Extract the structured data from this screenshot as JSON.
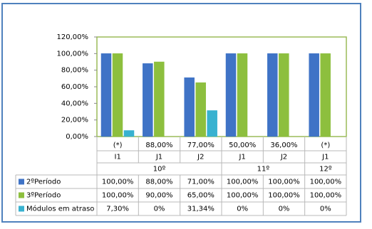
{
  "chart_data": {
    "type": "bar",
    "categories": [
      "I1",
      "J1",
      "J2",
      "J1",
      "J2",
      "J1"
    ],
    "category_top_labels": [
      "(*)",
      "88,00%",
      "77,00%",
      "50,00%",
      "36,00%",
      "(*)"
    ],
    "category_groups": [
      {
        "label": "10º",
        "span": 3
      },
      {
        "label": "11º",
        "span": 2
      },
      {
        "label": "12º",
        "span": 1
      }
    ],
    "series": [
      {
        "name": "2ºPeríodo",
        "color": "#3f73c6",
        "values": [
          100,
          88,
          71,
          100,
          100,
          100
        ],
        "value_labels": [
          "100,00%",
          "88,00%",
          "71,00%",
          "100,00%",
          "100,00%",
          "100,00%"
        ]
      },
      {
        "name": "3ºPeríodo",
        "color": "#8dbf3e",
        "values": [
          100,
          90,
          65,
          100,
          100,
          100
        ],
        "value_labels": [
          "100,00%",
          "90,00%",
          "65,00%",
          "100,00%",
          "100,00%",
          "100,00%"
        ]
      },
      {
        "name": "Módulos em atraso",
        "color": "#38b2d0",
        "values": [
          7.3,
          0,
          31.34,
          0,
          0,
          0
        ],
        "value_labels": [
          "7,30%",
          "0%",
          "31,34%",
          "0%",
          "0%",
          "0%"
        ]
      }
    ],
    "ylim": [
      0,
      120
    ],
    "yticks": [
      {
        "value": 0,
        "label": "0,00%"
      },
      {
        "value": 20,
        "label": "20,00%"
      },
      {
        "value": 40,
        "label": "40,00%"
      },
      {
        "value": 60,
        "label": "60,00%"
      },
      {
        "value": 80,
        "label": "80,00%"
      },
      {
        "value": 100,
        "label": "100,00%"
      },
      {
        "value": 120,
        "label": "120,00%"
      }
    ],
    "grid": false
  }
}
